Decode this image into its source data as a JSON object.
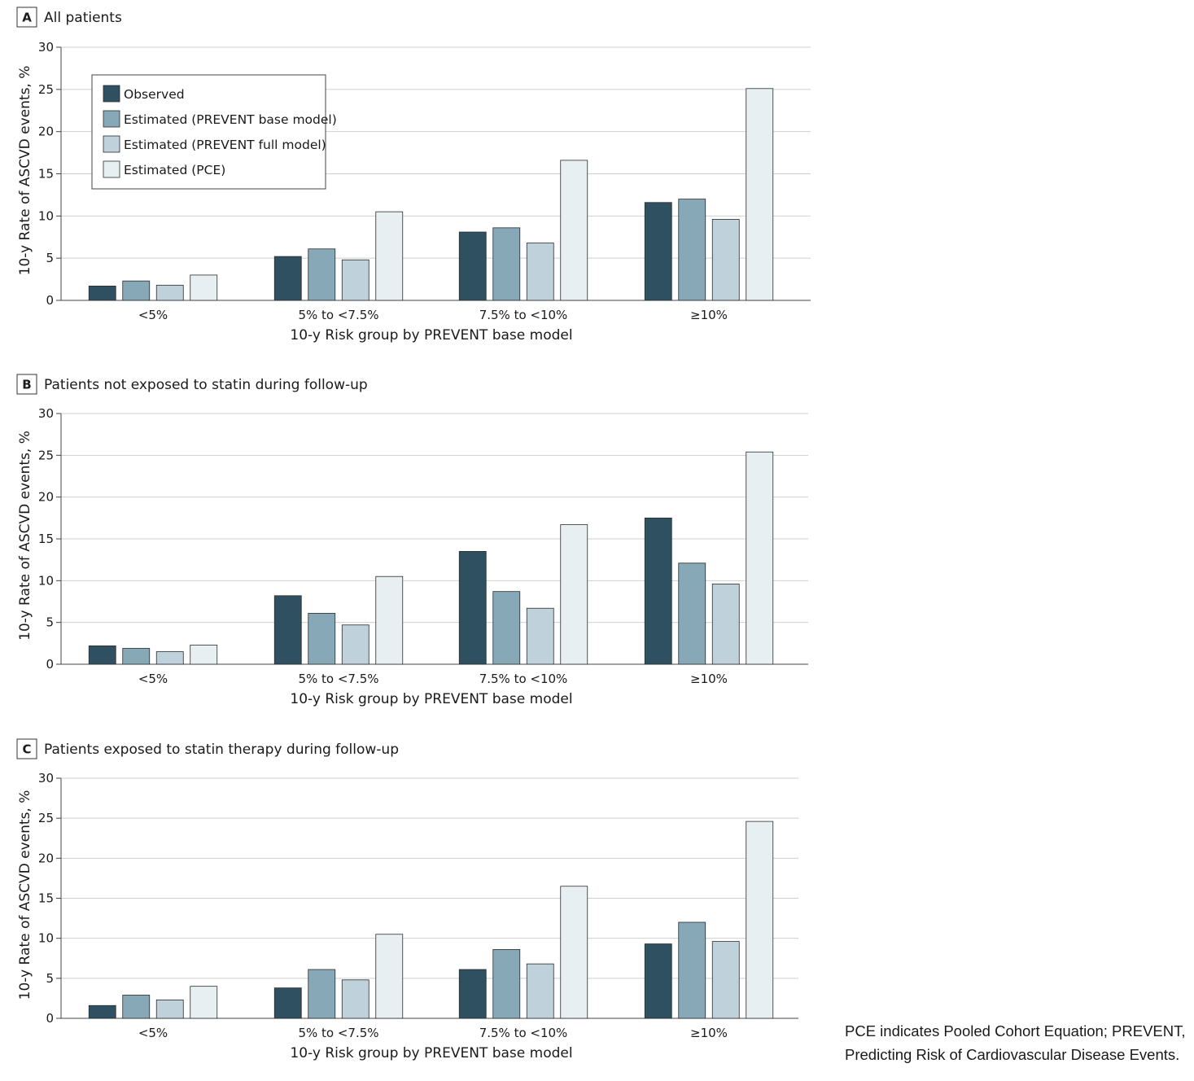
{
  "colors": {
    "observed": "#2e5060",
    "prevent_base": "#87a9b7",
    "prevent_full": "#bfd1da",
    "pce": "#e8eff2"
  },
  "legend": [
    {
      "label": "Observed",
      "color": "#2e5060"
    },
    {
      "label": "Estimated (PREVENT base model)",
      "color": "#87a9b7"
    },
    {
      "label": "Estimated (PREVENT full model)",
      "color": "#bfd1da"
    },
    {
      "label": "Estimated (PCE)",
      "color": "#e8eff2"
    }
  ],
  "footnote": "PCE indicates Pooled Cohort Equation; PREVENT, Predicting Risk of Cardiovascular Disease Events.",
  "chart_data": [
    {
      "type": "bar",
      "panel": "A",
      "title": "All patients",
      "xlabel": "10-y Risk group by PREVENT base model",
      "ylabel": "10-y Rate of ASCVD events, %",
      "ylim": [
        0,
        30
      ],
      "yticks": [
        0,
        5,
        10,
        15,
        20,
        25,
        30
      ],
      "grid": true,
      "legend_position": "top-left",
      "categories": [
        "<5%",
        "5% to <7.5%",
        "7.5% to <10%",
        "≥10%"
      ],
      "series": [
        {
          "name": "Observed",
          "values": [
            1.7,
            5.2,
            8.1,
            11.6
          ]
        },
        {
          "name": "Estimated (PREVENT base model)",
          "values": [
            2.3,
            6.1,
            8.6,
            12.0
          ]
        },
        {
          "name": "Estimated (PREVENT full model)",
          "values": [
            1.8,
            4.8,
            6.8,
            9.6
          ]
        },
        {
          "name": "Estimated (PCE)",
          "values": [
            3.0,
            10.5,
            16.6,
            25.1
          ]
        }
      ]
    },
    {
      "type": "bar",
      "panel": "B",
      "title": "Patients not exposed to statin during follow-up",
      "xlabel": "10-y Risk group by PREVENT base model",
      "ylabel": "10-y Rate of ASCVD events, %",
      "ylim": [
        0,
        30
      ],
      "yticks": [
        0,
        5,
        10,
        15,
        20,
        25,
        30
      ],
      "grid": true,
      "categories": [
        "<5%",
        "5% to <7.5%",
        "7.5% to <10%",
        "≥10%"
      ],
      "series": [
        {
          "name": "Observed",
          "values": [
            2.2,
            8.2,
            13.5,
            17.5
          ]
        },
        {
          "name": "Estimated (PREVENT base model)",
          "values": [
            1.9,
            6.1,
            8.7,
            12.1
          ]
        },
        {
          "name": "Estimated (PREVENT full model)",
          "values": [
            1.5,
            4.7,
            6.7,
            9.6
          ]
        },
        {
          "name": "Estimated (PCE)",
          "values": [
            2.3,
            10.5,
            16.7,
            25.4
          ]
        }
      ]
    },
    {
      "type": "bar",
      "panel": "C",
      "title": "Patients exposed to statin therapy during follow-up",
      "xlabel": "10-y Risk group by PREVENT base model",
      "ylabel": "10-y Rate of ASCVD events, %",
      "ylim": [
        0,
        30
      ],
      "yticks": [
        0,
        5,
        10,
        15,
        20,
        25,
        30
      ],
      "grid": true,
      "categories": [
        "<5%",
        "5% to <7.5%",
        "7.5% to <10%",
        "≥10%"
      ],
      "series": [
        {
          "name": "Observed",
          "values": [
            1.6,
            3.8,
            6.1,
            9.3
          ]
        },
        {
          "name": "Estimated (PREVENT base model)",
          "values": [
            2.9,
            6.1,
            8.6,
            12.0
          ]
        },
        {
          "name": "Estimated (PREVENT full model)",
          "values": [
            2.3,
            4.8,
            6.8,
            9.6
          ]
        },
        {
          "name": "Estimated (PCE)",
          "values": [
            4.0,
            10.5,
            16.5,
            24.6
          ]
        }
      ]
    }
  ]
}
